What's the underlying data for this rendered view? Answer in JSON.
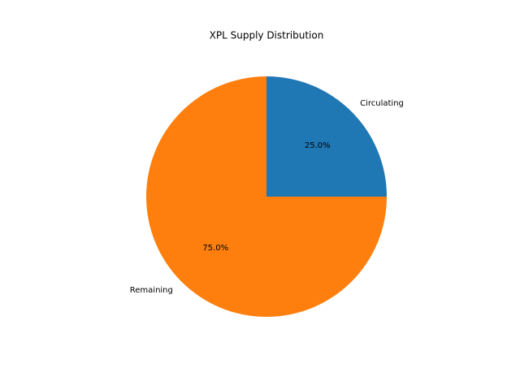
{
  "chart_data": {
    "type": "pie",
    "title": "XPL Supply Distribution",
    "categories": [
      "Circulating",
      "Remaining"
    ],
    "values": [
      25,
      75
    ],
    "value_labels": [
      "25.0%",
      "75.0%"
    ],
    "colors": [
      "#1f77b4",
      "#ff7f0e"
    ],
    "startangle": 90,
    "counterclock": false
  }
}
